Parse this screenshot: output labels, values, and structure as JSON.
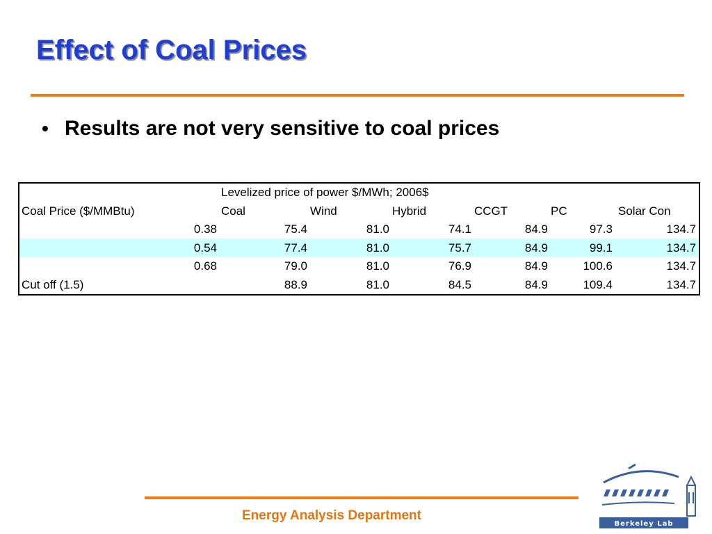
{
  "slide": {
    "title": "Effect of Coal Prices",
    "bullet": "Results are not very sensitive to coal prices"
  },
  "table": {
    "caption": "Levelized price of power $/MWh; 2006$",
    "row_header": "Coal Price ($/MMBtu)",
    "columns": [
      "Coal",
      "Wind",
      "Hybrid",
      "CCGT",
      "PC",
      "Solar Con"
    ],
    "rows": [
      {
        "price": "0.38",
        "values": [
          "75.4",
          "81.0",
          "74.1",
          "84.9",
          "97.3",
          "134.7"
        ]
      },
      {
        "price": "0.54",
        "values": [
          "77.4",
          "81.0",
          "75.7",
          "84.9",
          "99.1",
          "134.7"
        ]
      },
      {
        "price": "0.68",
        "values": [
          "79.0",
          "81.0",
          "76.9",
          "84.9",
          "100.6",
          "134.7"
        ]
      },
      {
        "price": "Cut off (1.5)",
        "values": [
          "88.9",
          "81.0",
          "84.5",
          "84.9",
          "109.4",
          "134.7"
        ]
      }
    ],
    "highlight_color": "#ccffff"
  },
  "footer": {
    "department": "Energy Analysis Department"
  },
  "logo": {
    "text": "Berkeley Lab",
    "icon": "berkeley-lab-logo"
  },
  "colors": {
    "title": "#1f3fd0",
    "accent_rule": "#f07c12",
    "footer_text": "#e47510",
    "logo_blue": "#3a5fa0"
  }
}
